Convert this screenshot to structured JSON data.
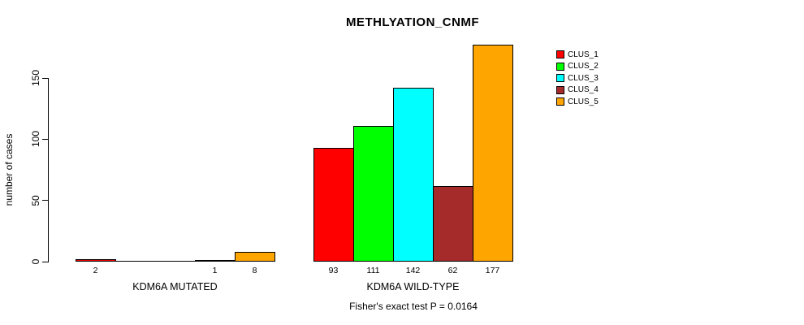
{
  "chart_data": {
    "type": "bar",
    "title": "METHLYATION_CNMF",
    "xlabel": "",
    "ylabel": "number of cases",
    "categories": [
      "KDM6A MUTATED",
      "KDM6A WILD-TYPE"
    ],
    "series": [
      {
        "name": "CLUS_1",
        "color": "#FF0000",
        "values": [
          2,
          93
        ]
      },
      {
        "name": "CLUS_2",
        "color": "#00FF00",
        "values": [
          0,
          111
        ]
      },
      {
        "name": "CLUS_3",
        "color": "#00FFFF",
        "values": [
          0,
          142
        ]
      },
      {
        "name": "CLUS_4",
        "color": "#A52A2A",
        "values": [
          1,
          62
        ]
      },
      {
        "name": "CLUS_5",
        "color": "#FFA500",
        "values": [
          8,
          177
        ]
      }
    ],
    "yticks": [
      0,
      50,
      100,
      150
    ],
    "ylim": [
      0,
      180
    ],
    "grid": false,
    "legend_position": "right",
    "bar_value_labels": true,
    "zero_bars_unlabeled": true,
    "annotation": "Fisher's exact test P = 0.0164",
    "axis_color": "#000000",
    "background_color": "#FFFFFF"
  }
}
